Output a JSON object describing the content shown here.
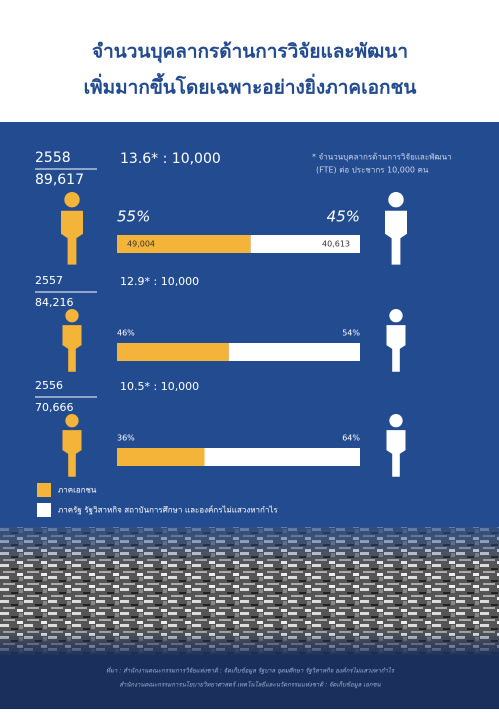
{
  "title": [
    "จำนวนบุคลากรด้านการวิจัยและพัฒนา",
    "เพิ่มมากขึ้นโดยเฉพาะอย่างยิ่งภาคเอกชน"
  ],
  "note": [
    "* จำนวนบุคลากรด้านการวิจัยและพัฒนา",
    "(FTE) ต่อ ประชากร 10,000 คน"
  ],
  "colors": {
    "private": "#f4b43a",
    "public": "#ffffff"
  },
  "years": [
    {
      "year": "2558",
      "total": "89,617",
      "ratio": "13.6* : 10,000",
      "private": {
        "value": 55,
        "label": "55%"
      },
      "public": {
        "value": 45,
        "label": "45%"
      },
      "private_count": {
        "value": 49004,
        "label": "49,004"
      },
      "public_count": {
        "value": 40613,
        "label": "40,613"
      }
    },
    {
      "year": "2557",
      "total": "84,216",
      "ratio": "12.9* : 10,000",
      "private": {
        "value": 46,
        "label": "46%"
      },
      "public": {
        "value": 54,
        "label": "54%"
      }
    },
    {
      "year": "2556",
      "total": "70,666",
      "ratio": "10.5* : 10,000",
      "private": {
        "value": 36,
        "label": "36%"
      },
      "public": {
        "value": 64,
        "label": "64%"
      }
    }
  ],
  "legend": [
    "ภาคเอกชน",
    "ภาครัฐ รัฐวิสาหกิจ สถาบันการศึกษา และองค์กรไม่แสวงหากำไร"
  ],
  "source": [
    "ที่มา : สำนักงานคณะกรรมการวิจัยแห่งชาติ : จัดเก็บข้อมูล รัฐบาล อุดมศึกษา รัฐวิสาหกิจ องค์กรไม่แสวงหากำไร",
    "สำนักงานคณะกรรมการนโยบายวิทยาศาสตร์ เทคโนโลยีและนวัตกรรมแห่งชาติ : จัดเก็บข้อมูล เอกชน"
  ]
}
